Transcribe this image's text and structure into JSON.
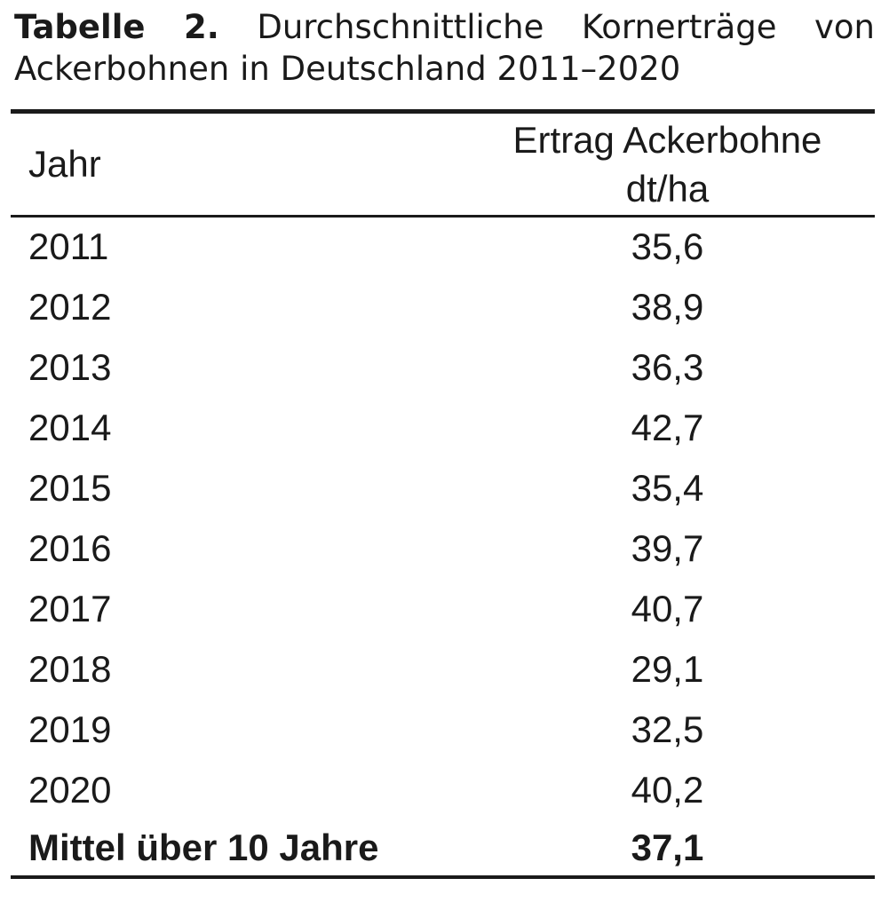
{
  "title": {
    "prefix": "Tabelle 2.",
    "line1_rest": "Durchschnittliche Kornerträge von",
    "line2": "Ackerbohnen in Deutschland 2011–2020"
  },
  "table": {
    "columns": {
      "year_label": "Jahr",
      "value_label_line1": "Ertrag Ackerbohne",
      "value_label_line2": "dt/ha"
    },
    "rows": [
      {
        "year": "2011",
        "value": "35,6"
      },
      {
        "year": "2012",
        "value": "38,9"
      },
      {
        "year": "2013",
        "value": "36,3"
      },
      {
        "year": "2014",
        "value": "42,7"
      },
      {
        "year": "2015",
        "value": "35,4"
      },
      {
        "year": "2016",
        "value": "39,7"
      },
      {
        "year": "2017",
        "value": "40,7"
      },
      {
        "year": "2018",
        "value": "29,1"
      },
      {
        "year": "2019",
        "value": "32,5"
      },
      {
        "year": "2020",
        "value": "40,2"
      }
    ],
    "summary": {
      "label": "Mittel über 10 Jahre",
      "value": "37,1"
    }
  },
  "colors": {
    "text": "#1a1a1a",
    "rule": "#1a1a1a",
    "background": "#ffffff"
  }
}
